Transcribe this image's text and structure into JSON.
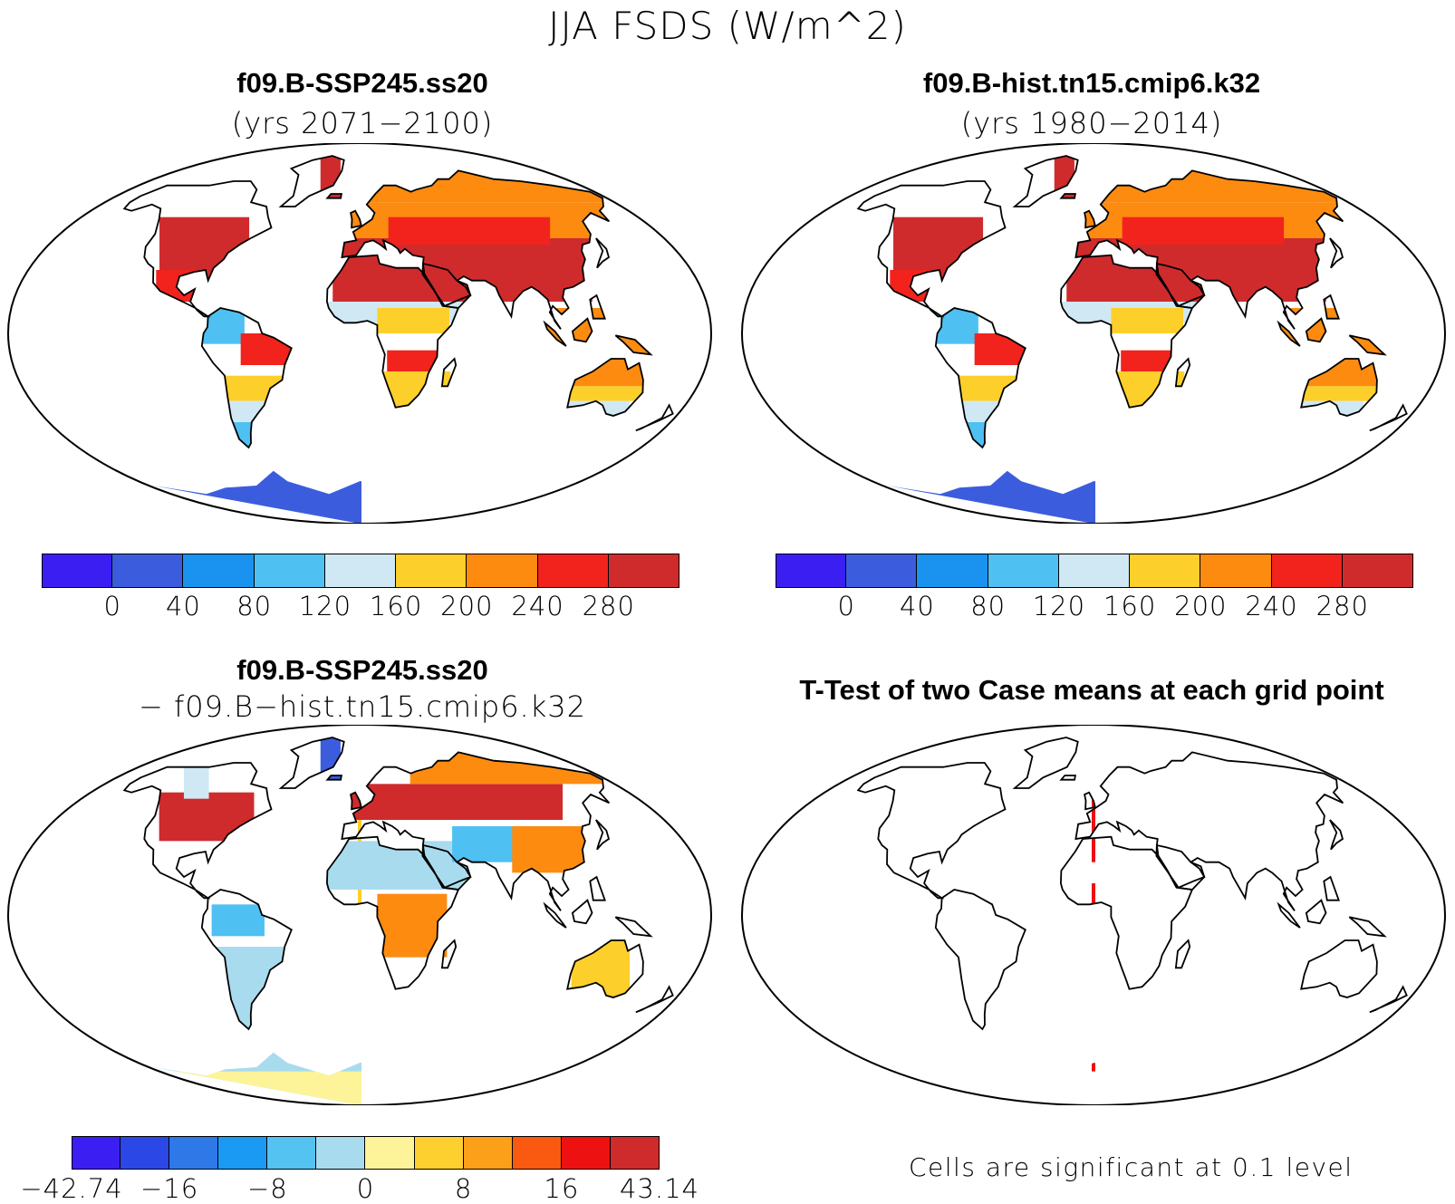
{
  "title": "JJA FSDS (W/m^2)",
  "panels": {
    "future": {
      "title": "f09.B-SSP245.ss20",
      "subtitle": "(yrs 2071−2100)"
    },
    "hist": {
      "title": "f09.B-hist.tn15.cmip6.k32",
      "subtitle": "(yrs 1980−2014)"
    },
    "diff": {
      "title": "f09.B-SSP245.ss20",
      "subtitle": "− f09.B−hist.tn15.cmip6.k32"
    },
    "ttest": {
      "title": "T-Test of two Case means at each grid point",
      "note": "Cells are significant at 0.1 level"
    }
  },
  "colorbars": {
    "abs": {
      "colors": [
        "#3b1ff2",
        "#3b5ddd",
        "#1a93f0",
        "#4fc0f2",
        "#cfe8f4",
        "#fdcf2a",
        "#fc8b10",
        "#f2231d",
        "#cf2b2d"
      ],
      "labels": [
        "0",
        "40",
        "80",
        "120",
        "160",
        "200",
        "240",
        "280"
      ]
    },
    "diff": {
      "colors": [
        "#3b1ff2",
        "#2b48e6",
        "#2f78e8",
        "#1a9af2",
        "#55c3f2",
        "#a9dbee",
        "#fdf49a",
        "#fdd030",
        "#fca01a",
        "#fa5a10",
        "#ee1111",
        "#cf2b2d"
      ],
      "labels": [
        "−42.74",
        "−16",
        "−8",
        "0",
        "8",
        "16",
        "43.14"
      ]
    }
  },
  "map_colors": {
    "land_hot": "#cf2b2d",
    "land_red": "#f2231d",
    "land_orange": "#fc8b10",
    "land_yellow": "#fdcf2a",
    "land_pale": "#cfe8f4",
    "land_light_blue": "#4fc0f2",
    "land_blue": "#3b5ddd",
    "significant": "#ee0f12",
    "diff_pale_yellow": "#fdf49a",
    "diff_light_blue": "#a9dbee"
  }
}
